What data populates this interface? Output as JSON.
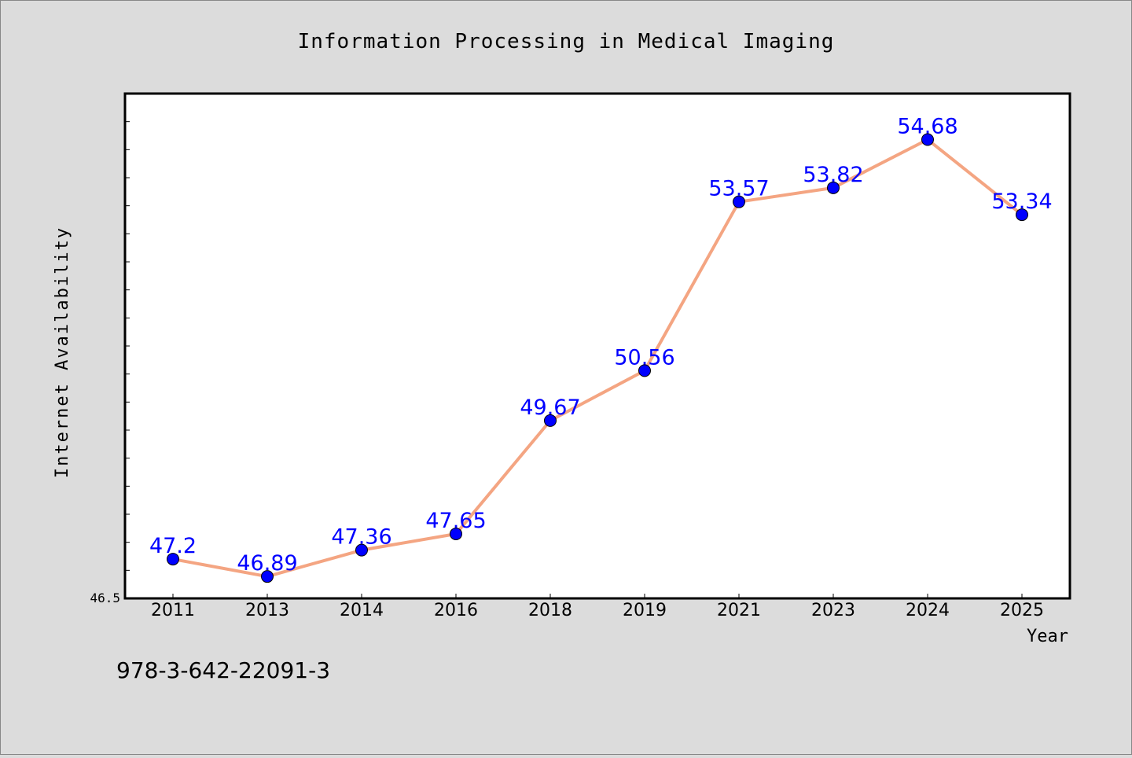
{
  "chart_data": {
    "type": "line",
    "title": "Information Processing in Medical Imaging",
    "xlabel": "Year",
    "ylabel": "Internet Availability",
    "categories": [
      "2011",
      "2013",
      "2014",
      "2016",
      "2018",
      "2019",
      "2021",
      "2023",
      "2024",
      "2025"
    ],
    "series": [
      {
        "values": [
          47.2,
          46.89,
          47.36,
          47.65,
          49.67,
          50.56,
          53.57,
          53.82,
          54.68,
          53.34
        ]
      }
    ],
    "data_labels": [
      "47.2",
      "46.89",
      "47.36",
      "47.65",
      "49.67",
      "50.56",
      "53.57",
      "53.82",
      "54.68",
      "53.34"
    ],
    "ylim": [
      46.5,
      55.5
    ],
    "y_tick_label": "46.5",
    "grid": false,
    "legend": "none",
    "footnote": "978-3-642-22091-3",
    "colors": {
      "line": "#f4a582",
      "marker": "#0000ff",
      "data_label": "#0000ff",
      "background": "#dcdcdc",
      "plot_area": "#ffffff"
    }
  }
}
